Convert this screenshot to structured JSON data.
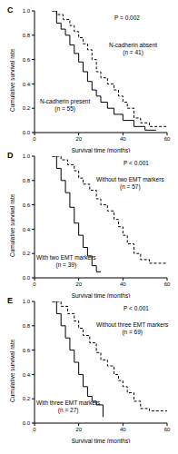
{
  "chart_data": [
    {
      "type": "line",
      "title": "C",
      "x_label": "Survival time (months)",
      "y_label": "Cumulative survival rate",
      "xlim": [
        0,
        60
      ],
      "xticks": [
        0,
        20,
        40,
        60
      ],
      "ylim": [
        0,
        1
      ],
      "yticks": [
        {
          "value": 0,
          "label": "0.0"
        },
        0.2,
        0.4,
        0.6,
        0.8,
        {
          "value": 1,
          "label": "1.0"
        }
      ],
      "annotations": [
        "P = 0.002",
        "(n = 41)",
        "(n = 55)"
      ],
      "series": [
        {
          "name": "N-cadherin absent",
          "color": "#000000",
          "line_style": "dashed",
          "x": [
            8,
            10,
            13,
            16,
            18,
            20,
            22,
            24,
            26,
            28,
            30,
            33,
            36,
            38,
            40,
            42,
            45,
            48,
            52,
            60
          ],
          "values": [
            1.0,
            0.97,
            0.93,
            0.88,
            0.83,
            0.78,
            0.73,
            0.68,
            0.6,
            0.5,
            0.45,
            0.4,
            0.35,
            0.3,
            0.25,
            0.2,
            0.12,
            0.08,
            0.05,
            0.05
          ]
        },
        {
          "name": "N-cadherin present",
          "color": "#000000",
          "line_style": "solid",
          "x": [
            8,
            10,
            12,
            14,
            16,
            18,
            20,
            22,
            24,
            26,
            28,
            30,
            33,
            36,
            40,
            45,
            50,
            55
          ],
          "values": [
            1.0,
            0.9,
            0.85,
            0.8,
            0.72,
            0.65,
            0.58,
            0.5,
            0.42,
            0.35,
            0.3,
            0.25,
            0.2,
            0.15,
            0.1,
            0.05,
            0.02,
            0.02
          ]
        }
      ]
    },
    {
      "type": "line",
      "title": "D",
      "x_label": "Survival time (months)",
      "y_label": "Cumulative survival rate",
      "xlim": [
        0,
        60
      ],
      "xticks": [
        0,
        20,
        40,
        60
      ],
      "ylim": [
        0,
        1
      ],
      "yticks": [
        {
          "value": 0,
          "label": "0.0"
        },
        0.2,
        0.4,
        0.6,
        0.8,
        {
          "value": 1,
          "label": "1.0"
        }
      ],
      "annotations": [
        "P < 0.001",
        "(n = 57)",
        "(n = 39)"
      ],
      "series": [
        {
          "name": "Without two EMT markers",
          "color": "#000000",
          "line_style": "dashed",
          "x": [
            8,
            12,
            15,
            18,
            20,
            22,
            25,
            28,
            30,
            33,
            36,
            38,
            40,
            42,
            45,
            48,
            52,
            60
          ],
          "values": [
            1.0,
            0.97,
            0.93,
            0.88,
            0.82,
            0.77,
            0.72,
            0.65,
            0.6,
            0.55,
            0.48,
            0.42,
            0.35,
            0.28,
            0.2,
            0.15,
            0.12,
            0.12
          ]
        },
        {
          "name": "With two EMT markers",
          "color": "#000000",
          "line_style": "solid",
          "x": [
            8,
            10,
            12,
            14,
            16,
            18,
            20,
            22,
            24,
            26,
            28,
            30
          ],
          "values": [
            1.0,
            0.9,
            0.8,
            0.7,
            0.58,
            0.45,
            0.35,
            0.25,
            0.18,
            0.1,
            0.05,
            0.05
          ]
        }
      ]
    },
    {
      "type": "line",
      "title": "E",
      "x_label": "Survival time (months)",
      "y_label": "Cumulative survival rate",
      "xlim": [
        0,
        60
      ],
      "xticks": [
        0,
        20,
        40,
        60
      ],
      "ylim": [
        0,
        1
      ],
      "yticks": [
        {
          "value": 0,
          "label": "0.0"
        },
        0.2,
        0.4,
        0.6,
        0.8,
        {
          "value": 1,
          "label": "1.0"
        }
      ],
      "annotations": [
        "P < 0.001",
        "(n = 69)",
        "(n = 27)"
      ],
      "series": [
        {
          "name": "Without three EMT markers",
          "color": "#000000",
          "line_style": "dashed",
          "x": [
            8,
            12,
            15,
            18,
            20,
            22,
            25,
            28,
            30,
            33,
            36,
            38,
            40,
            42,
            45,
            48,
            52,
            60
          ],
          "values": [
            1.0,
            0.96,
            0.9,
            0.84,
            0.78,
            0.72,
            0.66,
            0.58,
            0.52,
            0.47,
            0.4,
            0.35,
            0.3,
            0.25,
            0.18,
            0.12,
            0.1,
            0.1
          ]
        },
        {
          "name": "With three EMT markers",
          "color": "#000000",
          "line_style": "solid",
          "x": [
            8,
            10,
            12,
            14,
            16,
            18,
            20,
            22,
            24,
            26,
            28,
            31
          ],
          "values": [
            1.0,
            0.9,
            0.8,
            0.7,
            0.6,
            0.5,
            0.4,
            0.3,
            0.22,
            0.18,
            0.15,
            0.05
          ]
        }
      ]
    }
  ]
}
